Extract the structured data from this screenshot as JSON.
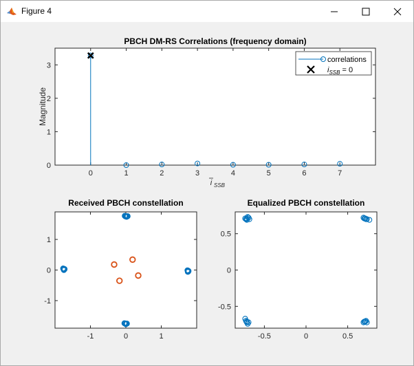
{
  "window": {
    "title": "Figure 4"
  },
  "figure": {
    "background": "#f0f0f0",
    "series_color": "#0072bd",
    "secondary_color": "#d95319",
    "marker_color": "#000000"
  },
  "chart_data": [
    {
      "type": "stem",
      "title": "PBCH DM-RS Correlations (frequency domain)",
      "xlabel": "i_SSB",
      "ylabel": "Magnitude",
      "xlim": [
        -1,
        8
      ],
      "ylim": [
        0,
        3.5
      ],
      "xticks": [
        "0",
        "1",
        "2",
        "3",
        "4",
        "5",
        "6",
        "7"
      ],
      "yticks": [
        "0",
        "1",
        "2",
        "3"
      ],
      "x": [
        0,
        1,
        2,
        3,
        4,
        5,
        6,
        7
      ],
      "series": [
        {
          "name": "correlations",
          "values": [
            3.28,
            0.0,
            0.02,
            0.05,
            0.01,
            0.01,
            0.02,
            0.04
          ]
        },
        {
          "name": "i_SSB = 0",
          "x": [
            0
          ],
          "values": [
            3.28
          ]
        }
      ],
      "legend": {
        "position": "top-right",
        "entries": [
          {
            "label": "correlations",
            "marker": "circle-line"
          },
          {
            "label": "i_SSB = 0",
            "marker": "x"
          }
        ]
      }
    },
    {
      "type": "scatter",
      "title": "Received PBCH constellation",
      "xlim": [
        -2,
        2
      ],
      "ylim": [
        -1.9,
        1.9
      ],
      "xticks": [
        "-1",
        "0",
        "1"
      ],
      "yticks": [
        "-1",
        "0",
        "1"
      ],
      "series": [
        {
          "points": [
            [
              0.0,
              1.76
            ],
            [
              0.04,
              1.75
            ],
            [
              -0.03,
              1.77
            ],
            [
              0.02,
              1.74
            ],
            [
              0.05,
              1.76
            ],
            [
              -0.01,
              1.75
            ],
            [
              -0.02,
              -1.75
            ],
            [
              0.01,
              -1.76
            ],
            [
              -0.04,
              -1.74
            ],
            [
              0.03,
              -1.75
            ],
            [
              0.0,
              -1.77
            ],
            [
              -1.76,
              0.04
            ],
            [
              -1.74,
              0.02
            ],
            [
              -1.77,
              0.05
            ],
            [
              -1.75,
              0.0
            ],
            [
              -1.73,
              0.03
            ],
            [
              1.75,
              -0.02
            ],
            [
              1.76,
              -0.05
            ],
            [
              1.74,
              -0.01
            ],
            [
              1.77,
              -0.03
            ],
            [
              1.75,
              -0.06
            ]
          ]
        },
        {
          "points": [
            [
              -0.33,
              0.18
            ],
            [
              0.19,
              0.34
            ],
            [
              -0.18,
              -0.35
            ],
            [
              0.35,
              -0.18
            ]
          ]
        }
      ]
    },
    {
      "type": "scatter",
      "title": "Equalized PBCH constellation",
      "xlim": [
        -0.85,
        0.85
      ],
      "ylim": [
        -0.8,
        0.8
      ],
      "xticks": [
        "-0.5",
        "0",
        "0.5"
      ],
      "yticks": [
        "-0.5",
        "0",
        "0.5"
      ],
      "series": [
        {
          "points": [
            [
              -0.71,
              0.71
            ],
            [
              -0.69,
              0.72
            ],
            [
              -0.72,
              0.7
            ],
            [
              -0.7,
              0.73
            ],
            [
              -0.73,
              0.71
            ],
            [
              -0.68,
              0.7
            ],
            [
              -0.71,
              0.69
            ],
            [
              0.71,
              0.71
            ],
            [
              0.69,
              0.72
            ],
            [
              0.72,
              0.7
            ],
            [
              0.7,
              0.71
            ],
            [
              0.73,
              0.7
            ],
            [
              0.76,
              0.69
            ],
            [
              -0.71,
              -0.71
            ],
            [
              -0.69,
              -0.72
            ],
            [
              -0.72,
              -0.7
            ],
            [
              -0.73,
              -0.67
            ],
            [
              -0.7,
              -0.74
            ],
            [
              -0.71,
              -0.72
            ],
            [
              0.71,
              -0.71
            ],
            [
              0.69,
              -0.72
            ],
            [
              0.72,
              -0.7
            ],
            [
              0.7,
              -0.71
            ],
            [
              0.73,
              -0.72
            ]
          ]
        }
      ]
    }
  ]
}
